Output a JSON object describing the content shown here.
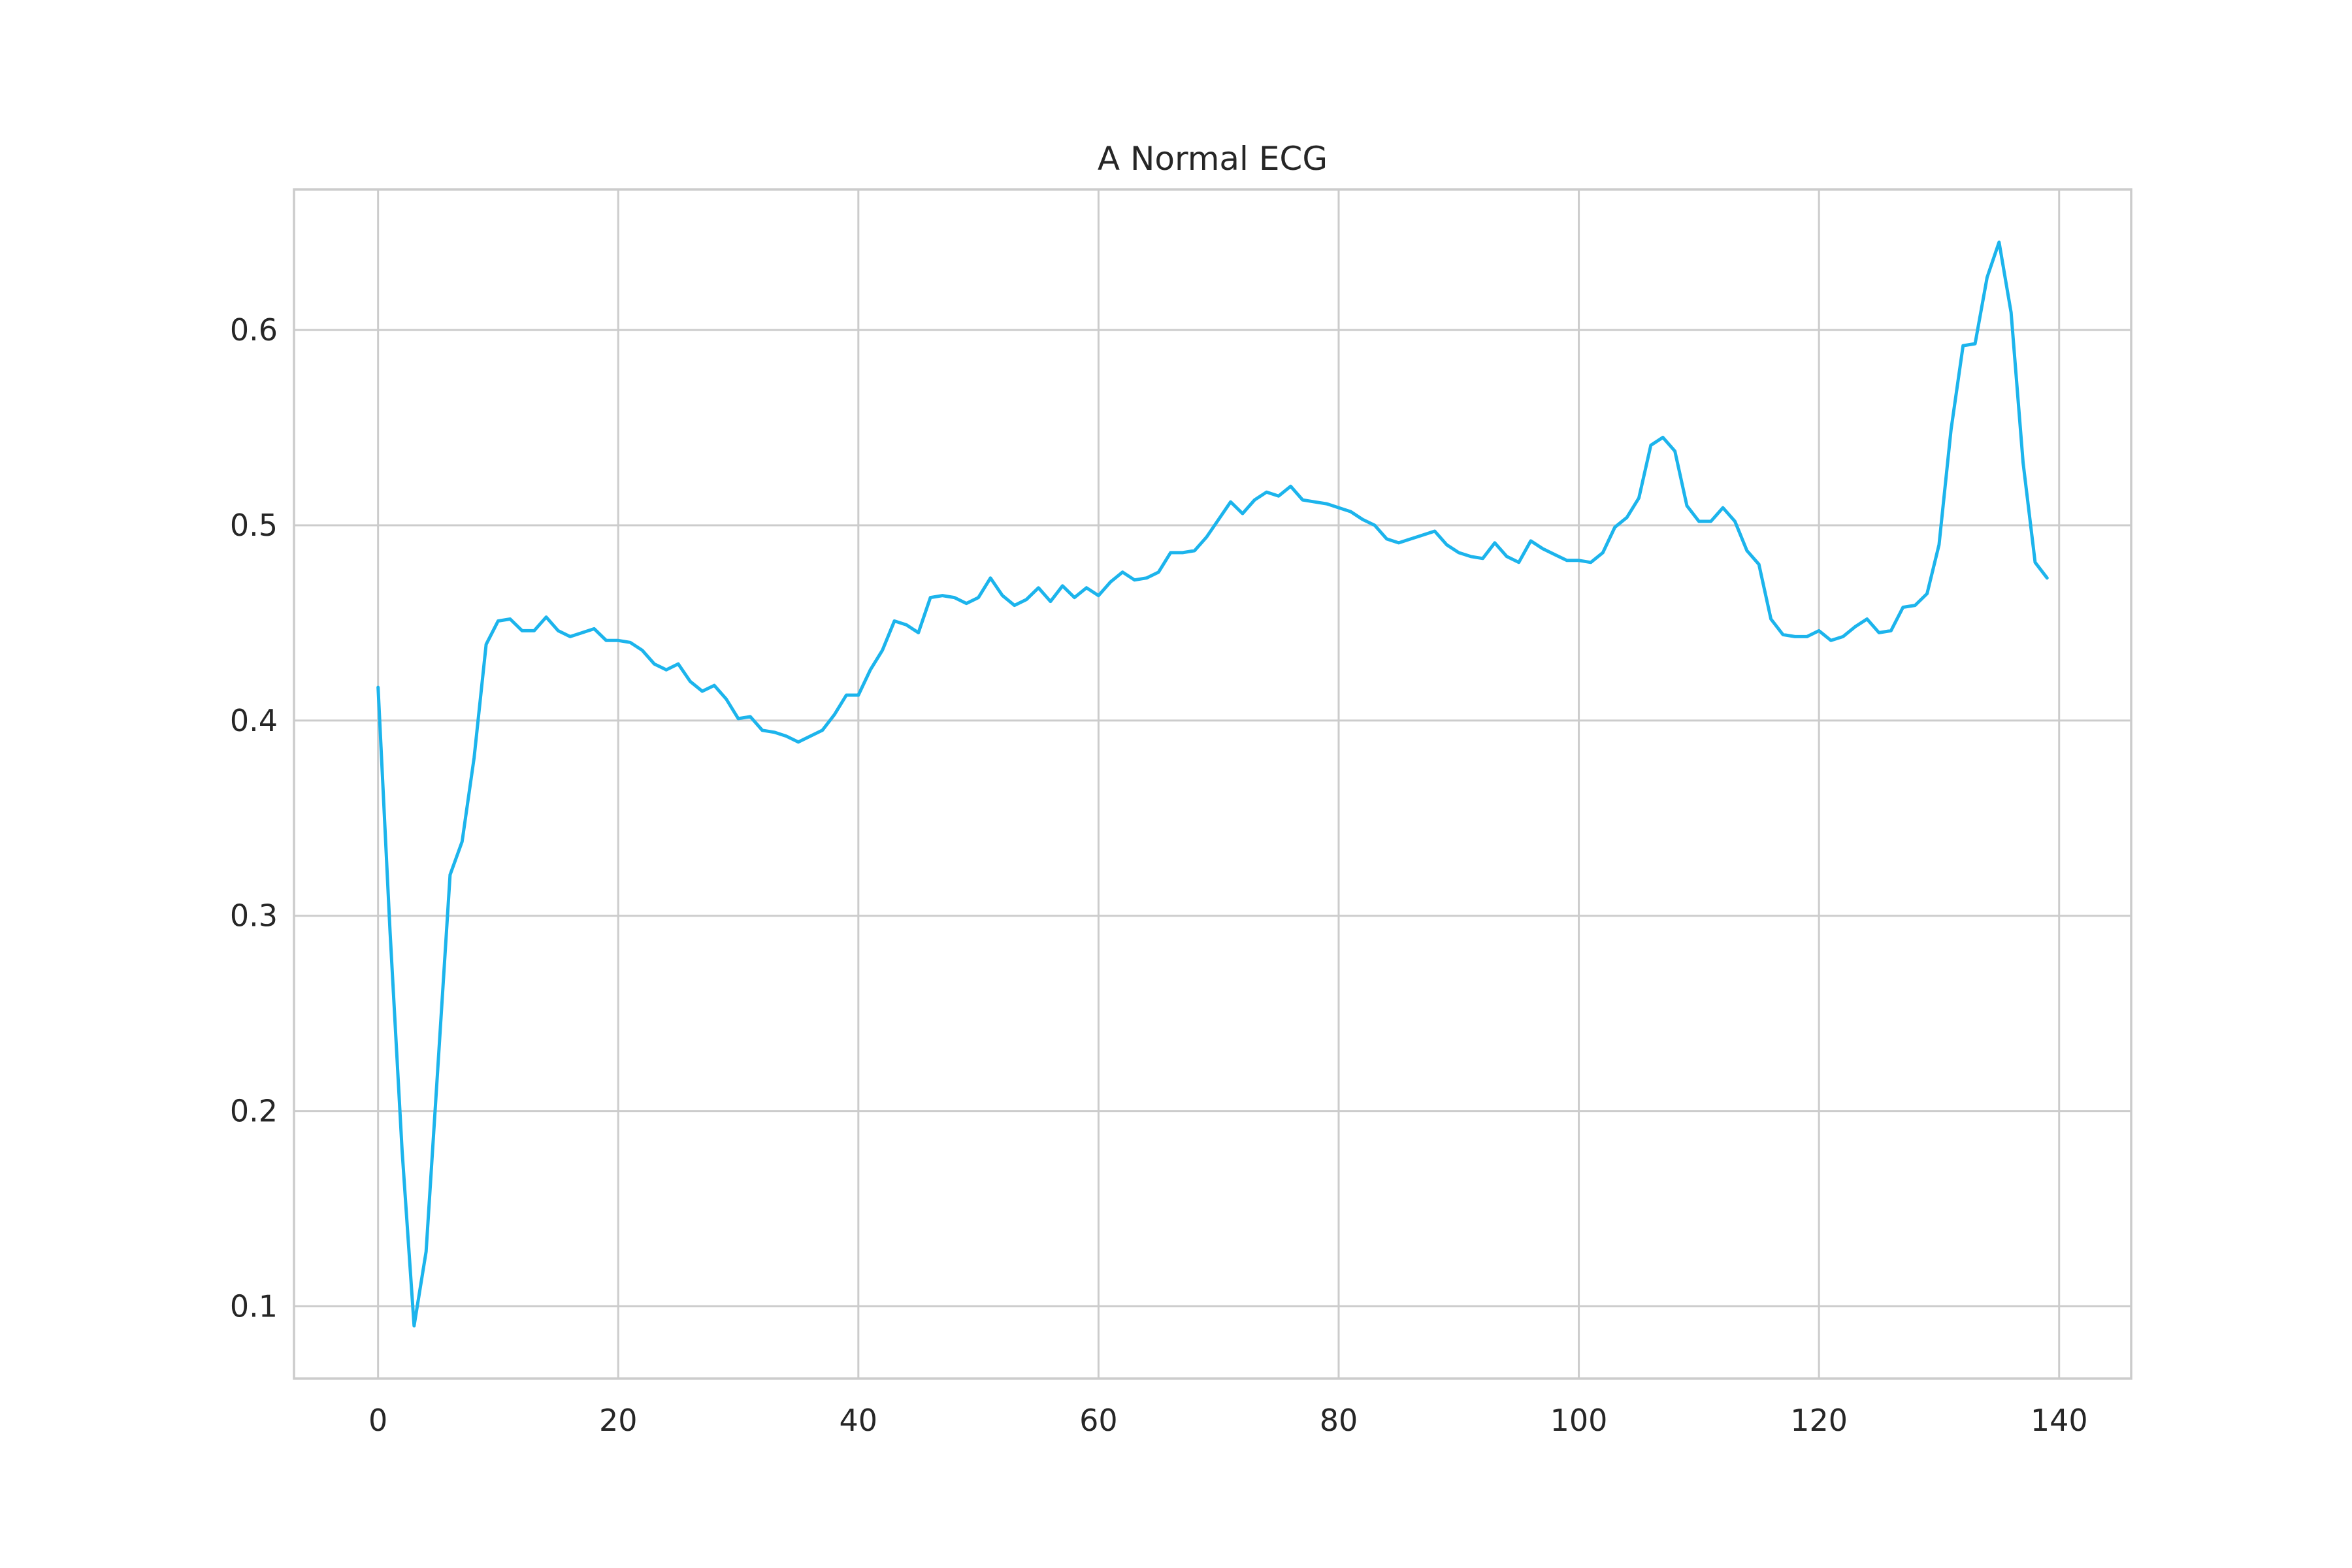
{
  "chart_data": {
    "type": "line",
    "title": "A Normal ECG",
    "xlabel": "",
    "ylabel": "",
    "xlim": [
      -7,
      146
    ],
    "ylim": [
      0.063,
      0.672
    ],
    "xticks": [
      0,
      20,
      40,
      60,
      80,
      100,
      120,
      140
    ],
    "yticks": [
      0.1,
      0.2,
      0.3,
      0.4,
      0.5,
      0.6
    ],
    "grid": true,
    "legend": "none",
    "line_color": "#1cb4ec",
    "series": [
      {
        "x": [
          0,
          1,
          2,
          3,
          4,
          5,
          6,
          7,
          8,
          9,
          10,
          11,
          12,
          13,
          14,
          15,
          16,
          17,
          18,
          19,
          20,
          21,
          22,
          23,
          24,
          25,
          26,
          27,
          28,
          29,
          30,
          31,
          32,
          33,
          34,
          35,
          36,
          37,
          38,
          39,
          40,
          41,
          42,
          43,
          44,
          45,
          46,
          47,
          48,
          49,
          50,
          51,
          52,
          53,
          54,
          55,
          56,
          57,
          58,
          59,
          60,
          61,
          62,
          63,
          64,
          65,
          66,
          67,
          68,
          69,
          70,
          71,
          72,
          73,
          74,
          75,
          76,
          77,
          78,
          79,
          80,
          81,
          82,
          83,
          84,
          85,
          86,
          87,
          88,
          89,
          90,
          91,
          92,
          93,
          94,
          95,
          96,
          97,
          98,
          99,
          100,
          101,
          102,
          103,
          104,
          105,
          106,
          107,
          108,
          109,
          110,
          111,
          112,
          113,
          114,
          115,
          116,
          117,
          118,
          119,
          120,
          121,
          122,
          123,
          124,
          125,
          126,
          127,
          128,
          129,
          130,
          131,
          132,
          133,
          134,
          135,
          136,
          137,
          138,
          139
        ],
        "values": [
          0.417,
          0.292,
          0.18,
          0.09,
          0.128,
          0.224,
          0.321,
          0.338,
          0.381,
          0.439,
          0.451,
          0.452,
          0.446,
          0.446,
          0.453,
          0.446,
          0.443,
          0.445,
          0.447,
          0.441,
          0.441,
          0.44,
          0.436,
          0.429,
          0.426,
          0.429,
          0.42,
          0.415,
          0.418,
          0.411,
          0.401,
          0.402,
          0.395,
          0.394,
          0.392,
          0.389,
          0.392,
          0.395,
          0.403,
          0.413,
          0.413,
          0.426,
          0.436,
          0.451,
          0.449,
          0.445,
          0.463,
          0.464,
          0.463,
          0.46,
          0.463,
          0.473,
          0.464,
          0.459,
          0.462,
          0.468,
          0.461,
          0.469,
          0.463,
          0.468,
          0.464,
          0.471,
          0.476,
          0.472,
          0.473,
          0.476,
          0.486,
          0.486,
          0.487,
          0.494,
          0.503,
          0.512,
          0.506,
          0.513,
          0.517,
          0.515,
          0.52,
          0.513,
          0.512,
          0.511,
          0.509,
          0.507,
          0.503,
          0.5,
          0.493,
          0.491,
          0.493,
          0.495,
          0.497,
          0.49,
          0.486,
          0.484,
          0.483,
          0.491,
          0.484,
          0.481,
          0.492,
          0.488,
          0.485,
          0.482,
          0.482,
          0.481,
          0.486,
          0.499,
          0.504,
          0.514,
          0.541,
          0.545,
          0.538,
          0.51,
          0.502,
          0.502,
          0.509,
          0.502,
          0.487,
          0.48,
          0.452,
          0.444,
          0.443,
          0.443,
          0.446,
          0.441,
          0.443,
          0.448,
          0.452,
          0.445,
          0.446,
          0.458,
          0.459,
          0.465,
          0.49,
          0.549,
          0.592,
          0.593,
          0.627,
          0.645,
          0.609,
          0.532,
          0.481,
          0.473
        ]
      }
    ]
  }
}
